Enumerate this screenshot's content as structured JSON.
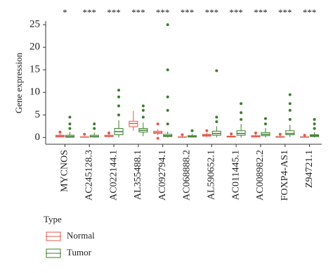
{
  "chart_data": {
    "type": "box",
    "y_label": "Gene expression",
    "categories": [
      "MYCNOS",
      "AC245128.3",
      "AC022144.1",
      "AL355488.1",
      "AC092794.1",
      "AC068888.2",
      "AL590652.1",
      "AC011445.1",
      "AC008982.2",
      "FOXP4-AS1",
      "Z94721.1"
    ],
    "significance": [
      "*",
      "***",
      "***",
      "***",
      "***",
      "***",
      "***",
      "***",
      "***",
      "***",
      "***"
    ],
    "ylim": [
      -1.5,
      25.8
    ],
    "yticks": [
      0,
      5,
      10,
      15,
      20,
      25
    ],
    "legend_title": "Type",
    "series": [
      {
        "name": "Normal",
        "color": "#e05a4e",
        "values": [
          [
            0,
            0.1,
            0.3,
            0.5,
            0.9
          ],
          [
            0,
            0.05,
            0.1,
            0.15,
            0.3
          ],
          [
            0,
            0.2,
            0.3,
            0.5,
            0.8
          ],
          [
            1.5,
            2.4,
            3.1,
            3.6,
            5.9
          ],
          [
            0.5,
            0.9,
            1.1,
            1.4,
            1.8
          ],
          [
            0,
            0.05,
            0.1,
            0.15,
            0.3
          ],
          [
            0.1,
            0.3,
            0.5,
            0.7,
            1.0
          ],
          [
            0,
            0.1,
            0.2,
            0.3,
            0.5
          ],
          [
            0,
            0.1,
            0.2,
            0.4,
            0.8
          ],
          [
            0,
            0.05,
            0.1,
            0.2,
            0.4
          ],
          [
            0,
            0.05,
            0.1,
            0.15,
            0.3
          ]
        ],
        "outliers": [
          [
            1.2
          ],
          [
            0.7
          ],
          [
            1.0
          ],
          [],
          [
            -0.2,
            3
          ],
          [
            0.6
          ],
          [
            1.5
          ],
          [
            0.8
          ],
          [
            1.0
          ],
          [
            0.7
          ],
          [
            0.5
          ]
        ]
      },
      {
        "name": "Tumor",
        "color": "#3c7d2e",
        "values": [
          [
            0,
            0.05,
            0.2,
            0.5,
            1.2
          ],
          [
            0,
            0.1,
            0.2,
            0.5,
            1.1
          ],
          [
            0,
            0.6,
            1.3,
            2.0,
            3.8
          ],
          [
            0.3,
            1.2,
            1.6,
            2.0,
            3.3
          ],
          [
            0,
            0.2,
            0.4,
            0.7,
            1.3
          ],
          [
            0,
            0.1,
            0.2,
            0.4,
            0.8
          ],
          [
            0,
            0.5,
            0.9,
            1.4,
            2.5
          ],
          [
            0,
            0.5,
            0.9,
            1.5,
            3
          ],
          [
            0,
            0.4,
            0.7,
            1.1,
            2.1
          ],
          [
            0.1,
            0.6,
            0.9,
            1.5,
            2.8
          ],
          [
            0,
            0.2,
            0.4,
            0.6,
            1.2
          ]
        ],
        "outliers": [
          [
            2,
            3,
            4.5
          ],
          [
            2,
            3
          ],
          [
            5,
            7,
            9,
            10.5
          ],
          [
            4.5,
            6,
            7
          ],
          [
            3,
            6,
            9,
            15,
            25
          ],
          [
            1.5
          ],
          [
            3.5,
            4.5,
            14.8
          ],
          [
            4,
            5.5,
            7.5
          ],
          [
            3,
            4.2
          ],
          [
            4,
            6,
            7.5,
            9.5
          ],
          [
            2,
            3,
            4
          ]
        ]
      }
    ]
  }
}
